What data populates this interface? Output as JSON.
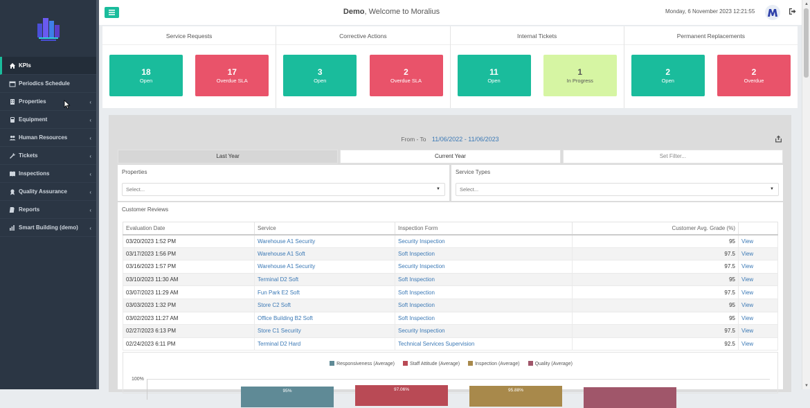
{
  "header": {
    "user": "Demo",
    "welcome_text": ", Welcome to Moralius",
    "datetime": "Monday, 6 November 2023 12:21:55"
  },
  "sidebar": {
    "items": [
      {
        "label": "KPIs",
        "icon": "home-icon",
        "active": true,
        "chevron": false
      },
      {
        "label": "Periodics Schedule",
        "icon": "calendar-icon",
        "chevron": false
      },
      {
        "label": "Properties",
        "icon": "building-icon",
        "chevron": true
      },
      {
        "label": "Equipment",
        "icon": "equipment-icon",
        "chevron": true
      },
      {
        "label": "Human Resources",
        "icon": "users-icon",
        "chevron": true
      },
      {
        "label": "Tickets",
        "icon": "wrench-icon",
        "chevron": true
      },
      {
        "label": "Inspections",
        "icon": "book-icon",
        "chevron": true
      },
      {
        "label": "Quality Assurance",
        "icon": "award-icon",
        "chevron": true
      },
      {
        "label": "Reports",
        "icon": "file-icon",
        "chevron": true
      },
      {
        "label": "Smart Building (demo)",
        "icon": "chart-icon",
        "chevron": true
      }
    ]
  },
  "kpis": [
    {
      "title": "Service Requests",
      "boxes": [
        {
          "value": "18",
          "label": "Open",
          "color": "green"
        },
        {
          "value": "17",
          "label": "Overdue SLA",
          "color": "red"
        }
      ]
    },
    {
      "title": "Corrective Actions",
      "boxes": [
        {
          "value": "3",
          "label": "Open",
          "color": "green"
        },
        {
          "value": "2",
          "label": "Overdue SLA",
          "color": "red"
        }
      ]
    },
    {
      "title": "Internal Tickets",
      "boxes": [
        {
          "value": "11",
          "label": "Open",
          "color": "green"
        },
        {
          "value": "1",
          "label": "In Progress",
          "color": "lime"
        }
      ]
    },
    {
      "title": "Permanent Replacements",
      "boxes": [
        {
          "value": "2",
          "label": "Open",
          "color": "green"
        },
        {
          "value": "2",
          "label": "Overdue",
          "color": "red"
        }
      ]
    }
  ],
  "report": {
    "range_label": "From - To",
    "range_value": "11/06/2022 - 11/06/2023",
    "tabs": [
      "Last Year",
      "Current Year",
      "Set Filter..."
    ],
    "filters": {
      "properties_label": "Properties",
      "properties_value": "Select...",
      "service_types_label": "Service Types",
      "service_types_value": "Select..."
    },
    "reviews_title": "Customer Reviews",
    "columns": [
      "Evaluation Date",
      "Service",
      "Inspection Form",
      "Customer Avg. Grade (%)",
      ""
    ],
    "rows": [
      [
        "03/20/2023 1:52 PM",
        "Warehouse A1 Security",
        "Security Inspection",
        "95",
        "View"
      ],
      [
        "03/17/2023 1:56 PM",
        "Warehouse A1 Soft",
        "Soft Inspection",
        "97.5",
        "View"
      ],
      [
        "03/16/2023 1:57 PM",
        "Warehouse A1 Security",
        "Security Inspection",
        "97.5",
        "View"
      ],
      [
        "03/10/2023 11:30 AM",
        "Terminal D2 Soft",
        "Soft Inspection",
        "95",
        "View"
      ],
      [
        "03/07/2023 11:29 AM",
        "Fun Park E2 Soft",
        "Soft Inspection",
        "97.5",
        "View"
      ],
      [
        "03/03/2023 1:32 PM",
        "Store C2 Soft",
        "Soft Inspection",
        "95",
        "View"
      ],
      [
        "03/02/2023 11:27 AM",
        "Office Building B2 Soft",
        "Soft Inspection",
        "95",
        "View"
      ],
      [
        "02/27/2023 6:13 PM",
        "Store C1 Security",
        "Security Inspection",
        "97.5",
        "View"
      ],
      [
        "02/24/2023 6:11 PM",
        "Terminal D2 Hard",
        "Technical Services Supervision",
        "92.5",
        "View"
      ]
    ]
  },
  "chart_data": {
    "type": "bar",
    "series": [
      {
        "name": "Responsiveness (Average)",
        "values": [
          95
        ],
        "color": "#5f8a96"
      },
      {
        "name": "Staff Attitude (Average)",
        "values": [
          97.06
        ],
        "color": "#b94a55"
      },
      {
        "name": "Inspection (Average)",
        "values": [
          95.88
        ],
        "color": "#a8894b"
      },
      {
        "name": "Quality (Average)",
        "values": [
          93.24
        ],
        "color": "#a0566a"
      }
    ],
    "bar_labels": [
      "95%",
      "97.06%",
      "95.88%",
      ""
    ],
    "ytick_top": "100%",
    "ylim": [
      0,
      100
    ]
  }
}
